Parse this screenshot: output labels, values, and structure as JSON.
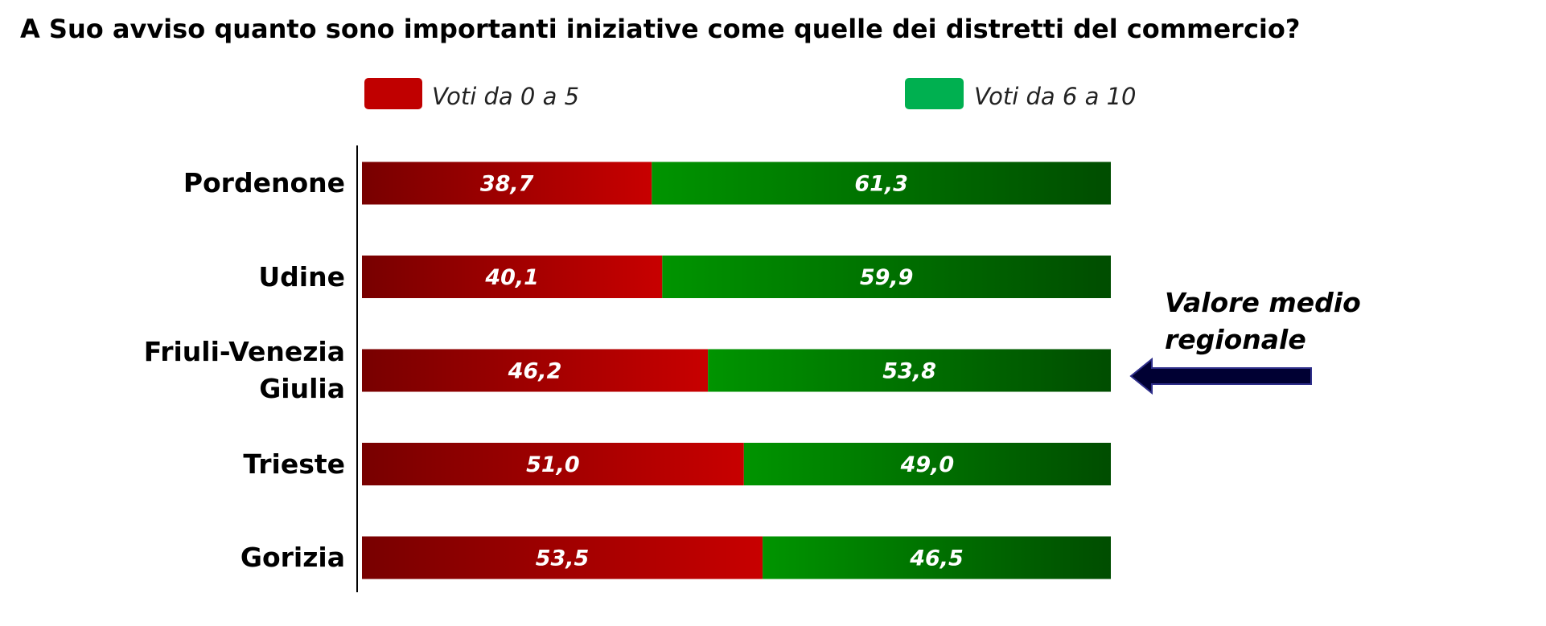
{
  "chart_data": {
    "type": "stacked-bar-horizontal",
    "title": "A Suo avviso quanto sono importanti iniziative come quelle dei distretti del commercio?",
    "categories": [
      "Pordenone",
      "Udine",
      "Friuli-Venezia Giulia",
      "Trieste",
      "Gorizia"
    ],
    "series": [
      {
        "name": "Voti da 0 a 5",
        "color": "#c00000",
        "values": [
          38.7,
          40.1,
          46.2,
          51.0,
          53.5
        ],
        "value_labels": [
          "38,7",
          "40,1",
          "46,2",
          "51,0",
          "53,5"
        ]
      },
      {
        "name": "Voti da 6 a 10",
        "color": "#00b050",
        "values": [
          61.3,
          59.9,
          53.8,
          49.0,
          46.5
        ],
        "value_labels": [
          "61,3",
          "59,9",
          "53,8",
          "49,0",
          "46,5"
        ]
      }
    ],
    "xlim": [
      0,
      100
    ],
    "annotation": "Valore medio regionale"
  }
}
